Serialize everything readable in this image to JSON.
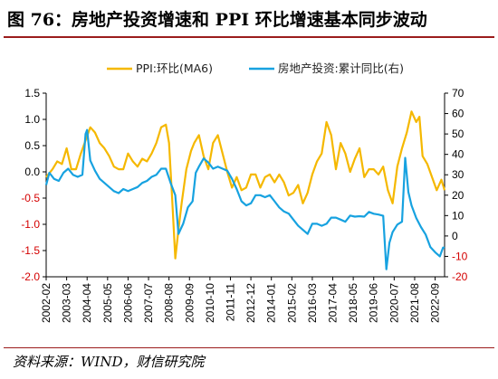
{
  "title": "图 76：房地产投资增速和 PPI 环比增速基本同步波动",
  "source": "资料来源：WIND，财信研究院",
  "chart_data": {
    "type": "line",
    "legend_position": "top",
    "grid": false,
    "colors": {
      "ppi": "#f5b800",
      "invest": "#17a2e0",
      "left_axis": "#000000",
      "left_axis_negative": "#d40000",
      "right_axis": "#000000",
      "right_axis_negative": "#d40000"
    },
    "left_axis": {
      "min": -2.0,
      "max": 1.5,
      "ticks": [
        {
          "v": 1.5,
          "label": "1.5"
        },
        {
          "v": 1.0,
          "label": "1.0"
        },
        {
          "v": 0.5,
          "label": "0.5"
        },
        {
          "v": 0.0,
          "label": "0.0"
        },
        {
          "v": -0.5,
          "label": "-0.5"
        },
        {
          "v": -1.0,
          "label": "-1.0"
        },
        {
          "v": -1.5,
          "label": "-1.5"
        },
        {
          "v": -2.0,
          "label": "-2.0"
        }
      ]
    },
    "right_axis": {
      "min": -20,
      "max": 70,
      "ticks": [
        {
          "v": 70,
          "label": "70"
        },
        {
          "v": 60,
          "label": "60"
        },
        {
          "v": 50,
          "label": "50"
        },
        {
          "v": 40,
          "label": "40"
        },
        {
          "v": 30,
          "label": "30"
        },
        {
          "v": 20,
          "label": "20"
        },
        {
          "v": 10,
          "label": "10"
        },
        {
          "v": 0,
          "label": "0"
        },
        {
          "v": -10,
          "label": "-10"
        },
        {
          "v": -20,
          "label": "-20"
        }
      ]
    },
    "x_range": [
      "2002-02",
      "2023-03"
    ],
    "x_tick_labels": [
      "2002-02",
      "2003-03",
      "2004-04",
      "2005-05",
      "2006-06",
      "2007-07",
      "2008-08",
      "2009-09",
      "2010-10",
      "2011-11",
      "2012-12",
      "2014-01",
      "2015-02",
      "2016-03",
      "2017-04",
      "2018-05",
      "2019-06",
      "2020-07",
      "2021-08",
      "2022-09"
    ],
    "series": [
      {
        "name": "PPI:环比(MA6)",
        "axis": "left",
        "points": [
          [
            "2002-02",
            -0.1
          ],
          [
            "2002-06",
            0.05
          ],
          [
            "2002-09",
            0.2
          ],
          [
            "2002-12",
            0.15
          ],
          [
            "2003-03",
            0.45
          ],
          [
            "2003-06",
            0.05
          ],
          [
            "2003-09",
            0.05
          ],
          [
            "2003-12",
            0.35
          ],
          [
            "2004-03",
            0.6
          ],
          [
            "2004-06",
            0.85
          ],
          [
            "2004-09",
            0.75
          ],
          [
            "2004-12",
            0.55
          ],
          [
            "2005-03",
            0.45
          ],
          [
            "2005-06",
            0.3
          ],
          [
            "2005-09",
            0.1
          ],
          [
            "2005-12",
            0.05
          ],
          [
            "2006-03",
            0.05
          ],
          [
            "2006-06",
            0.35
          ],
          [
            "2006-09",
            0.2
          ],
          [
            "2006-12",
            0.1
          ],
          [
            "2007-03",
            0.25
          ],
          [
            "2007-06",
            0.2
          ],
          [
            "2007-09",
            0.35
          ],
          [
            "2007-12",
            0.55
          ],
          [
            "2008-03",
            0.85
          ],
          [
            "2008-06",
            0.9
          ],
          [
            "2008-08",
            0.55
          ],
          [
            "2008-10",
            -0.5
          ],
          [
            "2008-12",
            -1.65
          ],
          [
            "2009-02",
            -1.1
          ],
          [
            "2009-04",
            -0.6
          ],
          [
            "2009-07",
            0.05
          ],
          [
            "2009-10",
            0.4
          ],
          [
            "2009-12",
            0.55
          ],
          [
            "2010-03",
            0.7
          ],
          [
            "2010-06",
            0.3
          ],
          [
            "2010-09",
            0.05
          ],
          [
            "2010-12",
            0.55
          ],
          [
            "2011-03",
            0.7
          ],
          [
            "2011-06",
            0.35
          ],
          [
            "2011-09",
            0.0
          ],
          [
            "2011-12",
            -0.3
          ],
          [
            "2012-03",
            -0.1
          ],
          [
            "2012-06",
            -0.35
          ],
          [
            "2012-09",
            -0.3
          ],
          [
            "2012-12",
            -0.05
          ],
          [
            "2013-03",
            -0.05
          ],
          [
            "2013-06",
            -0.3
          ],
          [
            "2013-09",
            -0.1
          ],
          [
            "2013-12",
            -0.05
          ],
          [
            "2014-03",
            -0.2
          ],
          [
            "2014-06",
            -0.05
          ],
          [
            "2014-09",
            -0.2
          ],
          [
            "2014-12",
            -0.45
          ],
          [
            "2015-03",
            -0.4
          ],
          [
            "2015-06",
            -0.25
          ],
          [
            "2015-09",
            -0.6
          ],
          [
            "2015-12",
            -0.4
          ],
          [
            "2016-03",
            -0.05
          ],
          [
            "2016-06",
            0.2
          ],
          [
            "2016-09",
            0.35
          ],
          [
            "2016-12",
            0.95
          ],
          [
            "2017-03",
            0.7
          ],
          [
            "2017-06",
            0.05
          ],
          [
            "2017-09",
            0.55
          ],
          [
            "2017-12",
            0.35
          ],
          [
            "2018-03",
            0.0
          ],
          [
            "2018-06",
            0.25
          ],
          [
            "2018-09",
            0.45
          ],
          [
            "2018-12",
            -0.1
          ],
          [
            "2019-03",
            0.05
          ],
          [
            "2019-06",
            0.05
          ],
          [
            "2019-09",
            -0.05
          ],
          [
            "2019-12",
            0.1
          ],
          [
            "2020-03",
            -0.35
          ],
          [
            "2020-06",
            -0.6
          ],
          [
            "2020-09",
            0.1
          ],
          [
            "2020-12",
            0.45
          ],
          [
            "2021-03",
            0.75
          ],
          [
            "2021-06",
            1.15
          ],
          [
            "2021-09",
            0.95
          ],
          [
            "2021-11",
            1.05
          ],
          [
            "2022-01",
            0.3
          ],
          [
            "2022-04",
            0.15
          ],
          [
            "2022-07",
            -0.1
          ],
          [
            "2022-10",
            -0.35
          ],
          [
            "2023-01",
            -0.15
          ],
          [
            "2023-03",
            -0.35
          ]
        ]
      },
      {
        "name": "房地产投资:累计同比(右)",
        "axis": "right",
        "points": [
          [
            "2002-02",
            25
          ],
          [
            "2002-04",
            31
          ],
          [
            "2002-07",
            28
          ],
          [
            "2002-10",
            27
          ],
          [
            "2003-01",
            31
          ],
          [
            "2003-04",
            33
          ],
          [
            "2003-07",
            30
          ],
          [
            "2003-10",
            29
          ],
          [
            "2004-01",
            30
          ],
          [
            "2004-03",
            50
          ],
          [
            "2004-04",
            52
          ],
          [
            "2004-06",
            37
          ],
          [
            "2004-09",
            32
          ],
          [
            "2004-12",
            28
          ],
          [
            "2005-03",
            26
          ],
          [
            "2005-06",
            24
          ],
          [
            "2005-09",
            22
          ],
          [
            "2005-12",
            21
          ],
          [
            "2006-03",
            23
          ],
          [
            "2006-06",
            22
          ],
          [
            "2006-09",
            23
          ],
          [
            "2006-12",
            24
          ],
          [
            "2007-03",
            26
          ],
          [
            "2007-06",
            27
          ],
          [
            "2007-09",
            29
          ],
          [
            "2007-12",
            30
          ],
          [
            "2008-03",
            33
          ],
          [
            "2008-06",
            33
          ],
          [
            "2008-09",
            26
          ],
          [
            "2008-12",
            20
          ],
          [
            "2009-02",
            1
          ],
          [
            "2009-05",
            6
          ],
          [
            "2009-08",
            14
          ],
          [
            "2009-11",
            17
          ],
          [
            "2010-01",
            31
          ],
          [
            "2010-03",
            34
          ],
          [
            "2010-06",
            38
          ],
          [
            "2010-09",
            36
          ],
          [
            "2010-12",
            33
          ],
          [
            "2011-03",
            34
          ],
          [
            "2011-06",
            33
          ],
          [
            "2011-09",
            32
          ],
          [
            "2011-12",
            28
          ],
          [
            "2012-03",
            23
          ],
          [
            "2012-06",
            17
          ],
          [
            "2012-09",
            15
          ],
          [
            "2012-12",
            16
          ],
          [
            "2013-03",
            20
          ],
          [
            "2013-06",
            20
          ],
          [
            "2013-09",
            19
          ],
          [
            "2013-12",
            20
          ],
          [
            "2014-03",
            17
          ],
          [
            "2014-06",
            14
          ],
          [
            "2014-09",
            12
          ],
          [
            "2014-12",
            11
          ],
          [
            "2015-03",
            8
          ],
          [
            "2015-06",
            5
          ],
          [
            "2015-09",
            3
          ],
          [
            "2015-12",
            1
          ],
          [
            "2016-03",
            6
          ],
          [
            "2016-06",
            6
          ],
          [
            "2016-09",
            5
          ],
          [
            "2016-12",
            6
          ],
          [
            "2017-03",
            9
          ],
          [
            "2017-06",
            9
          ],
          [
            "2017-09",
            8
          ],
          [
            "2017-12",
            7
          ],
          [
            "2018-03",
            10
          ],
          [
            "2018-06",
            9.5
          ],
          [
            "2018-09",
            9.7
          ],
          [
            "2018-12",
            9.5
          ],
          [
            "2019-03",
            11.8
          ],
          [
            "2019-06",
            10.9
          ],
          [
            "2019-09",
            10.5
          ],
          [
            "2019-12",
            9.9
          ],
          [
            "2020-02",
            -16.3
          ],
          [
            "2020-04",
            -3.3
          ],
          [
            "2020-06",
            1.9
          ],
          [
            "2020-09",
            5.6
          ],
          [
            "2020-12",
            7.0
          ],
          [
            "2021-02",
            38.3
          ],
          [
            "2021-04",
            21.6
          ],
          [
            "2021-06",
            15.0
          ],
          [
            "2021-09",
            8.8
          ],
          [
            "2021-12",
            4.4
          ],
          [
            "2022-03",
            0.7
          ],
          [
            "2022-06",
            -5.4
          ],
          [
            "2022-09",
            -8.0
          ],
          [
            "2022-12",
            -10.0
          ],
          [
            "2023-02",
            -5.7
          ],
          [
            "2023-03",
            -5.8
          ]
        ]
      }
    ]
  }
}
